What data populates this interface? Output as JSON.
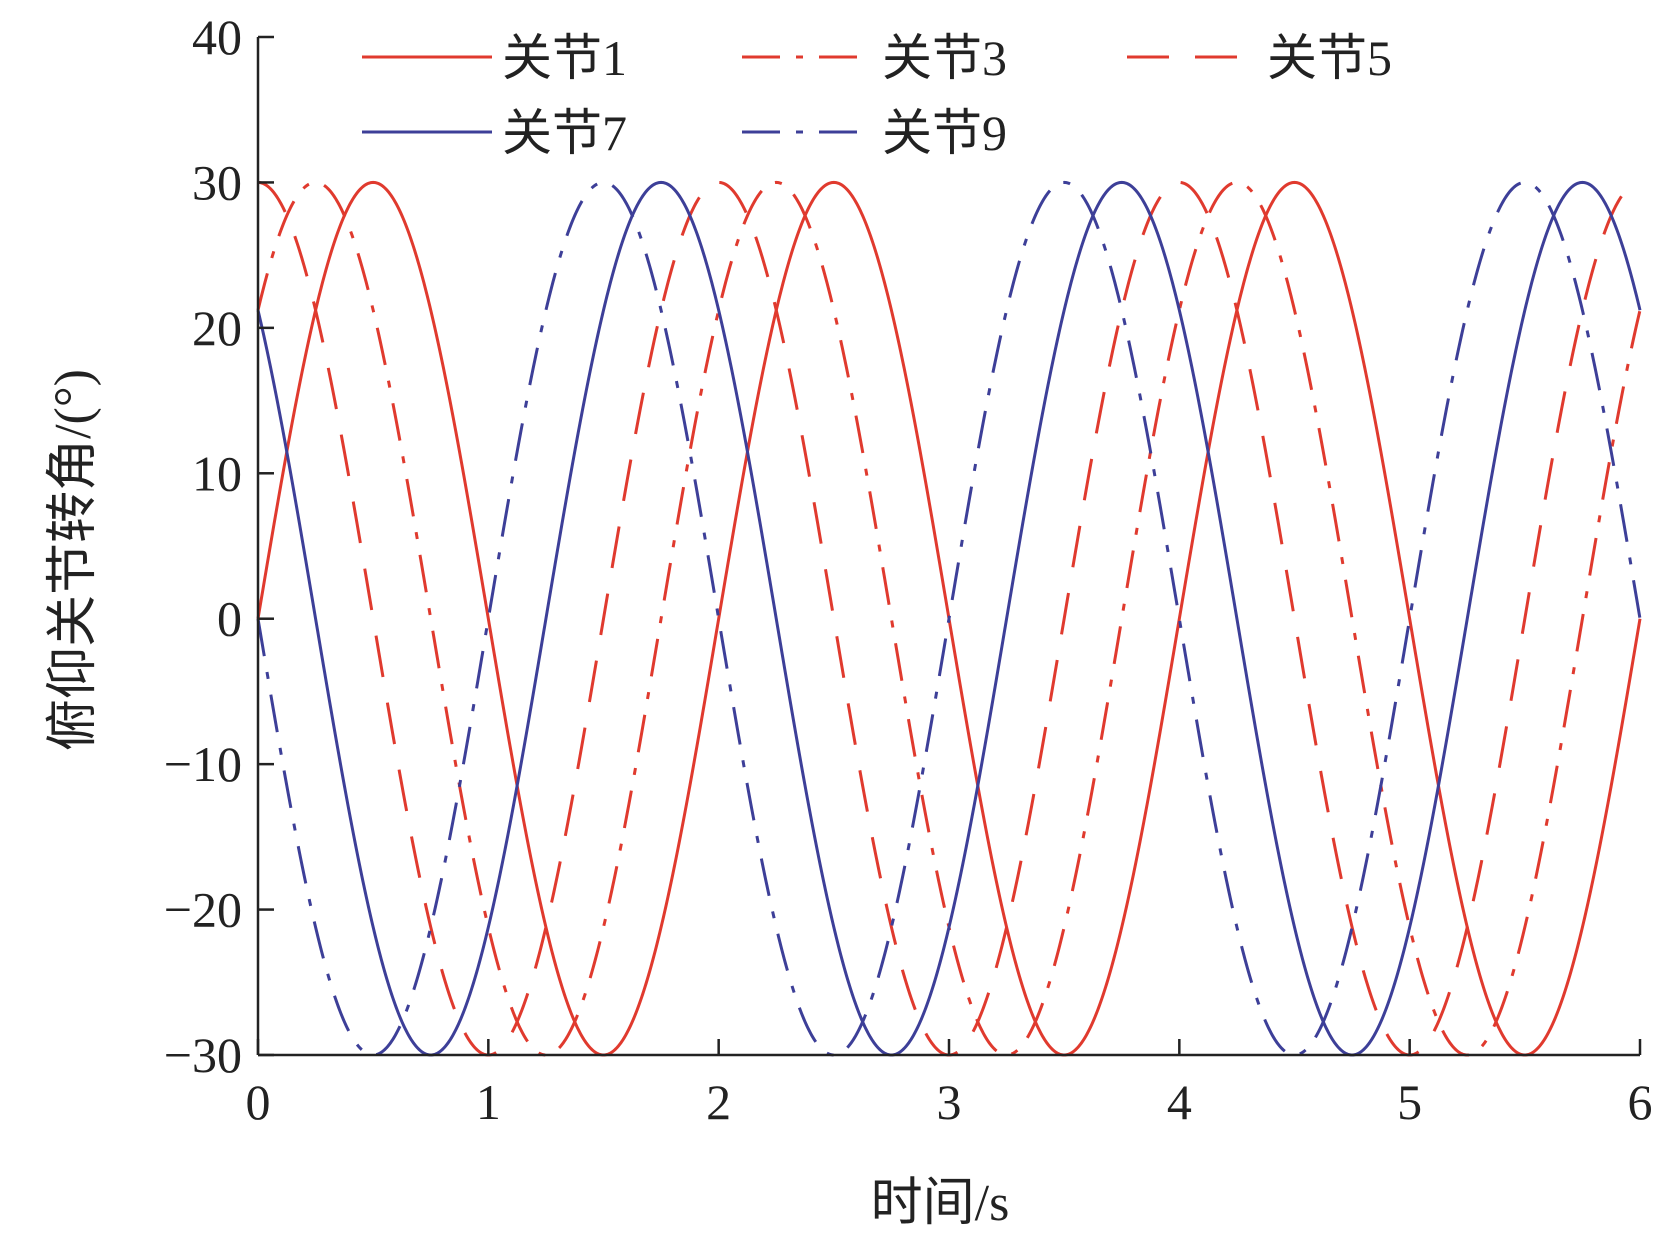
{
  "chart_data": {
    "type": "line",
    "title": "",
    "xlabel": "时间/s",
    "ylabel": "俯仰关节转角/(°)",
    "xlim": [
      0,
      6
    ],
    "ylim": [
      -30,
      40
    ],
    "xticks": [
      0,
      1,
      2,
      3,
      4,
      5,
      6
    ],
    "yticks": [
      -30,
      -20,
      -10,
      0,
      10,
      20,
      30,
      40
    ],
    "ytick_labels": [
      "−30",
      "−20",
      "−10",
      "0",
      "10",
      "20",
      "30",
      "40"
    ],
    "grid": false,
    "legend_position": "top",
    "series": [
      {
        "name": "关节1",
        "color": "#e03a2e",
        "style": "solid",
        "function": "30*sin(pi*t)",
        "amplitude": 30,
        "period": 2,
        "phase_deg": 0
      },
      {
        "name": "关节3",
        "color": "#e03a2e",
        "style": "dashdot",
        "function": "30*sin(pi*t + pi/4)",
        "amplitude": 30,
        "period": 2,
        "phase_deg": 45
      },
      {
        "name": "关节5",
        "color": "#e03a2e",
        "style": "dashed",
        "function": "30*sin(pi*t + pi/2)",
        "amplitude": 30,
        "period": 2,
        "phase_deg": 90
      },
      {
        "name": "关节7",
        "color": "#3d3f98",
        "style": "solid",
        "function": "30*sin(pi*t + 3pi/4)",
        "amplitude": 30,
        "period": 2,
        "phase_deg": 135
      },
      {
        "name": "关节9",
        "color": "#3d3f98",
        "style": "dashdot",
        "function": "30*sin(pi*t + pi)",
        "amplitude": 30,
        "period": 2,
        "phase_deg": 180
      }
    ]
  }
}
